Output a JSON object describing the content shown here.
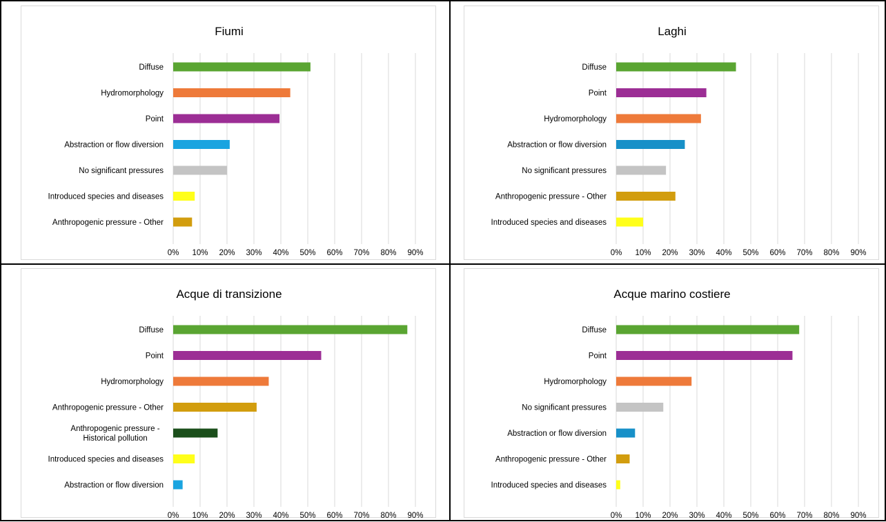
{
  "colors": {
    "diffuse": "#5aa532",
    "hydromorphology": "#ee7a3a",
    "point": "#9c2e95",
    "abstraction": "#1aa4e0",
    "abstraction_dark": "#1790c8",
    "no_significant": "#c4c4c4",
    "introduced": "#ffff1a",
    "anthropogenic_other": "#d29d0e",
    "historical": "#1b4f1b",
    "grid": "#d9d9d9",
    "text": "#000000"
  },
  "chart_data": [
    {
      "type": "bar",
      "orientation": "horizontal",
      "title": "Fiumi",
      "categories": [
        "Diffuse",
        "Hydromorphology",
        "Point",
        "Abstraction or flow diversion",
        "No significant pressures",
        "Introduced species and diseases",
        "Anthropogenic pressure - Other"
      ],
      "values": [
        51,
        43.5,
        39.5,
        21,
        20,
        8,
        7
      ],
      "colors": [
        "diffuse",
        "hydromorphology",
        "point",
        "abstraction",
        "no_significant",
        "introduced",
        "anthropogenic_other"
      ],
      "xticks": [
        "0%",
        "10%",
        "20%",
        "30%",
        "40%",
        "50%",
        "60%",
        "70%",
        "80%",
        "90%"
      ],
      "xlim": [
        0,
        90
      ],
      "grid": true
    },
    {
      "type": "bar",
      "orientation": "horizontal",
      "title": "Laghi",
      "categories": [
        "Diffuse",
        "Point",
        "Hydromorphology",
        "Abstraction or flow diversion",
        "No significant pressures",
        "Anthropogenic pressure - Other",
        "Introduced species and diseases"
      ],
      "values": [
        44.5,
        33.5,
        31.5,
        25.5,
        18.5,
        22,
        10
      ],
      "colors": [
        "diffuse",
        "point",
        "hydromorphology",
        "abstraction_dark",
        "no_significant",
        "anthropogenic_other",
        "introduced"
      ],
      "xticks": [
        "0%",
        "10%",
        "20%",
        "30%",
        "40%",
        "50%",
        "60%",
        "70%",
        "80%",
        "90%"
      ],
      "xlim": [
        0,
        90
      ],
      "grid": true
    },
    {
      "type": "bar",
      "orientation": "horizontal",
      "title": "Acque di transizione",
      "categories": [
        "Diffuse",
        "Point",
        "Hydromorphology",
        "Anthropogenic pressure - Other",
        [
          "Anthropogenic pressure -",
          "Historical pollution"
        ],
        "Introduced species and diseases",
        "Abstraction or flow diversion"
      ],
      "values": [
        87,
        55,
        35.5,
        31,
        16.5,
        8,
        3.5
      ],
      "colors": [
        "diffuse",
        "point",
        "hydromorphology",
        "anthropogenic_other",
        "historical",
        "introduced",
        "abstraction"
      ],
      "xticks": [
        "0%",
        "10%",
        "20%",
        "30%",
        "40%",
        "50%",
        "60%",
        "70%",
        "80%",
        "90%"
      ],
      "xlim": [
        0,
        90
      ],
      "grid": true
    },
    {
      "type": "bar",
      "orientation": "horizontal",
      "title": "Acque marino costiere",
      "categories": [
        "Diffuse",
        "Point",
        "Hydromorphology",
        "No significant pressures",
        "Abstraction or flow diversion",
        "Anthropogenic pressure - Other",
        "Introduced species and diseases"
      ],
      "values": [
        68,
        65.5,
        28,
        17.5,
        7,
        5,
        1.5
      ],
      "colors": [
        "diffuse",
        "point",
        "hydromorphology",
        "no_significant",
        "abstraction_dark",
        "anthropogenic_other",
        "introduced"
      ],
      "xticks": [
        "0%",
        "10%",
        "20%",
        "30%",
        "40%",
        "50%",
        "60%",
        "70%",
        "80%",
        "90%"
      ],
      "xlim": [
        0,
        90
      ],
      "grid": true
    }
  ]
}
